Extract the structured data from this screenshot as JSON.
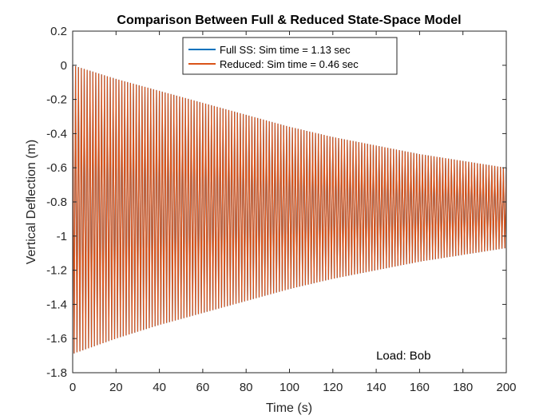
{
  "chart_data": {
    "type": "line",
    "title": "Comparison Between Full & Reduced State-Space Model",
    "xlabel": "Time (s)",
    "ylabel": "Vertical Deflection (m)",
    "xlim": [
      0,
      200
    ],
    "ylim": [
      -1.8,
      0.2
    ],
    "xticks": [
      0,
      20,
      40,
      60,
      80,
      100,
      120,
      140,
      160,
      180,
      200
    ],
    "yticks": [
      0.2,
      0,
      -0.2,
      -0.4,
      -0.6,
      -0.8,
      -1,
      -1.2,
      -1.4,
      -1.6,
      -1.8
    ],
    "xtick_labels": [
      "0",
      "20",
      "40",
      "60",
      "80",
      "100",
      "120",
      "140",
      "160",
      "180",
      "200"
    ],
    "ytick_labels": [
      "0.2",
      "0",
      "-0.2",
      "-0.4",
      "-0.6",
      "-0.8",
      "-1",
      "-1.2",
      "-1.4",
      "-1.6",
      "-1.8"
    ],
    "grid": false,
    "legend_position": "top-center",
    "series": [
      {
        "name": "Full SS: Sim time = 1.13 sec",
        "color": "#0072BD",
        "t": [
          0,
          20,
          40,
          60,
          80,
          100,
          120,
          140,
          160,
          180,
          200
        ],
        "upper_envelope": [
          0.0,
          -0.08,
          -0.15,
          -0.22,
          -0.29,
          -0.36,
          -0.42,
          -0.47,
          -0.52,
          -0.56,
          -0.6
        ],
        "lower_envelope": [
          -1.69,
          -1.6,
          -1.52,
          -1.45,
          -1.38,
          -1.31,
          -1.25,
          -1.2,
          -1.15,
          -1.11,
          -1.07
        ],
        "cycles": 150
      },
      {
        "name": "Reduced: Sim time = 0.46 sec",
        "color": "#D95319",
        "t": [
          0,
          20,
          40,
          60,
          80,
          100,
          120,
          140,
          160,
          180,
          200
        ],
        "upper_envelope": [
          0.0,
          -0.08,
          -0.15,
          -0.22,
          -0.29,
          -0.36,
          -0.42,
          -0.47,
          -0.52,
          -0.56,
          -0.6
        ],
        "lower_envelope": [
          -1.69,
          -1.6,
          -1.52,
          -1.45,
          -1.38,
          -1.31,
          -1.25,
          -1.2,
          -1.15,
          -1.11,
          -1.07
        ],
        "cycles": 150
      }
    ],
    "annotations": [
      {
        "text": "Load: Bob",
        "x": 140,
        "y": -1.7
      }
    ]
  }
}
